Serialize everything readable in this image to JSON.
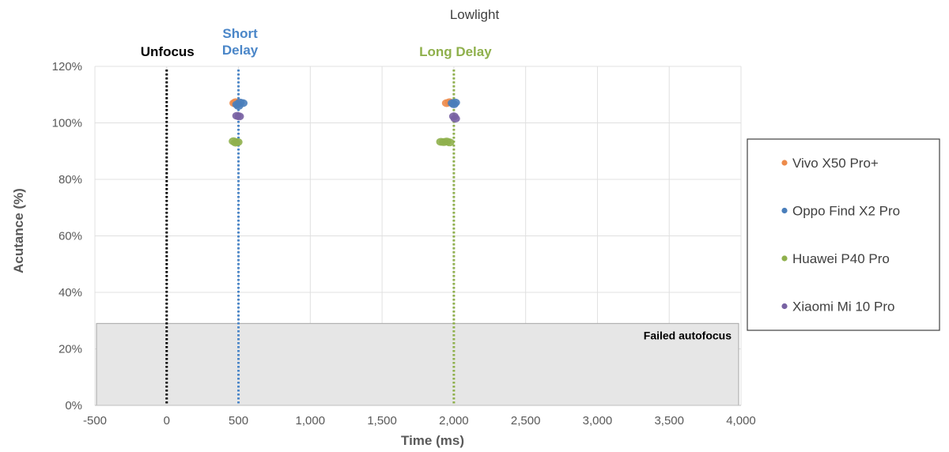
{
  "chart_data": {
    "type": "scatter",
    "title": "Lowlight",
    "xlabel": "Time (ms)",
    "ylabel": "Acutance (%)",
    "xlim": [
      -500,
      4000
    ],
    "ylim": [
      0,
      120
    ],
    "x_ticks": [
      -500,
      0,
      500,
      1000,
      1500,
      2000,
      2500,
      3000,
      3500,
      4000
    ],
    "x_tick_labels": [
      "-500",
      "0",
      "500",
      "1,000",
      "1,500",
      "2,000",
      "2,500",
      "3,000",
      "3,500",
      "4,000"
    ],
    "y_ticks": [
      0,
      20,
      40,
      60,
      80,
      100,
      120
    ],
    "y_tick_labels": [
      "0%",
      "20%",
      "40%",
      "60%",
      "80%",
      "100%",
      "120%"
    ],
    "grid": true,
    "legend_position": "right",
    "failed_region": {
      "label": "Failed autofocus",
      "y_max": 29,
      "color": "#e6e6e6"
    },
    "reference_lines": [
      {
        "label": "Unfocus",
        "x": 0,
        "color": "#000000"
      },
      {
        "label": "Short Delay",
        "x": 500,
        "color": "#4a86c8"
      },
      {
        "label": "Long Delay",
        "x": 2000,
        "color": "#8fb04c"
      }
    ],
    "series": [
      {
        "name": "Vivo X50 Pro+",
        "color": "#ed8b4b",
        "points": [
          [
            470,
            107
          ],
          [
            480,
            107.3
          ],
          [
            490,
            106.8
          ],
          [
            1950,
            107
          ],
          [
            1970,
            107.3
          ],
          [
            1990,
            107
          ]
        ]
      },
      {
        "name": "Oppo Find X2 Pro",
        "color": "#4a7ebb",
        "points": [
          [
            490,
            106.5
          ],
          [
            510,
            107.2
          ],
          [
            530,
            107
          ],
          [
            500,
            106
          ],
          [
            1990,
            107
          ],
          [
            2010,
            107.2
          ],
          [
            2000,
            106.6
          ]
        ]
      },
      {
        "name": "Huawei P40 Pro",
        "color": "#8fb04c",
        "points": [
          [
            465,
            93.5
          ],
          [
            480,
            93
          ],
          [
            495,
            93.2
          ],
          [
            1910,
            93.3
          ],
          [
            1930,
            93.2
          ],
          [
            1950,
            93.4
          ],
          [
            1970,
            93.1
          ]
        ]
      },
      {
        "name": "Xiaomi Mi 10 Pro",
        "color": "#7862a3",
        "points": [
          [
            490,
            102.5
          ],
          [
            505,
            102.3
          ],
          [
            2000,
            102.3
          ],
          [
            2010,
            101.5
          ]
        ]
      }
    ]
  }
}
